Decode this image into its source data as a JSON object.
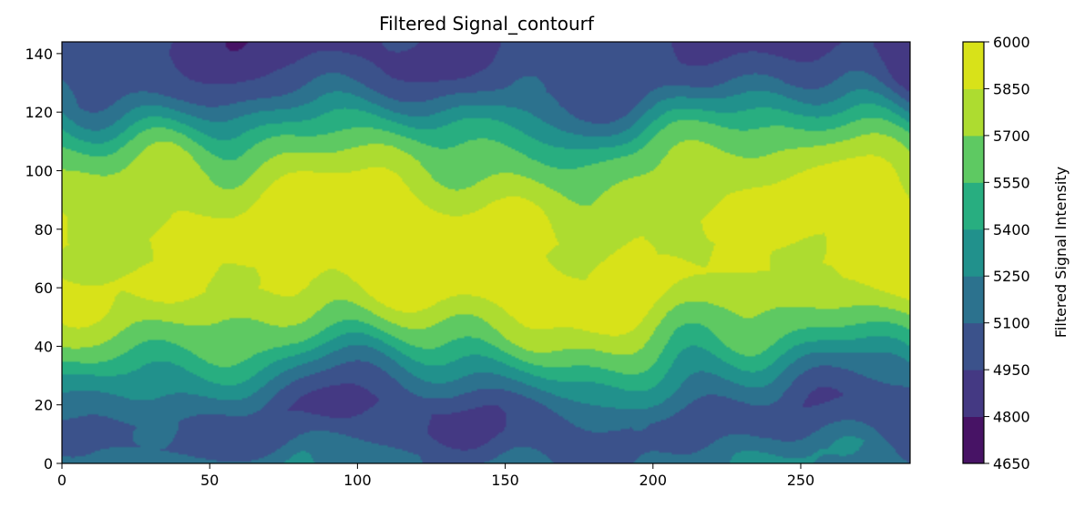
{
  "chart_data": {
    "type": "contourf",
    "title": "Filtered Signal_contourf",
    "xlabel": "",
    "ylabel": "",
    "xlim": [
      0,
      287
    ],
    "ylim": [
      0,
      144
    ],
    "x_ticks": [
      0,
      50,
      100,
      150,
      200,
      250
    ],
    "y_ticks": [
      0,
      20,
      40,
      60,
      80,
      100,
      120,
      140
    ],
    "colorbar": {
      "label": "Filtered Signal Intensity",
      "levels": [
        4650,
        4800,
        4950,
        5100,
        5250,
        5400,
        5550,
        5700,
        5850,
        6000
      ],
      "colors": [
        "#471365",
        "#443983",
        "#3b528b",
        "#2c728e",
        "#21918c",
        "#28ae80",
        "#5ec962",
        "#addc30",
        "#d8e219"
      ]
    },
    "contour_profile": {
      "description_rows": "band intensity by y (data units), approximate",
      "y": [
        0,
        8,
        16,
        24,
        32,
        40,
        48,
        56,
        64,
        72,
        80,
        88,
        96,
        104,
        112,
        120,
        128,
        136,
        144
      ],
      "value": [
        5180,
        5020,
        4990,
        5140,
        5330,
        5560,
        5720,
        5860,
        5930,
        5880,
        5920,
        5860,
        5780,
        5680,
        5520,
        5270,
        5050,
        4960,
        4920
      ]
    }
  }
}
